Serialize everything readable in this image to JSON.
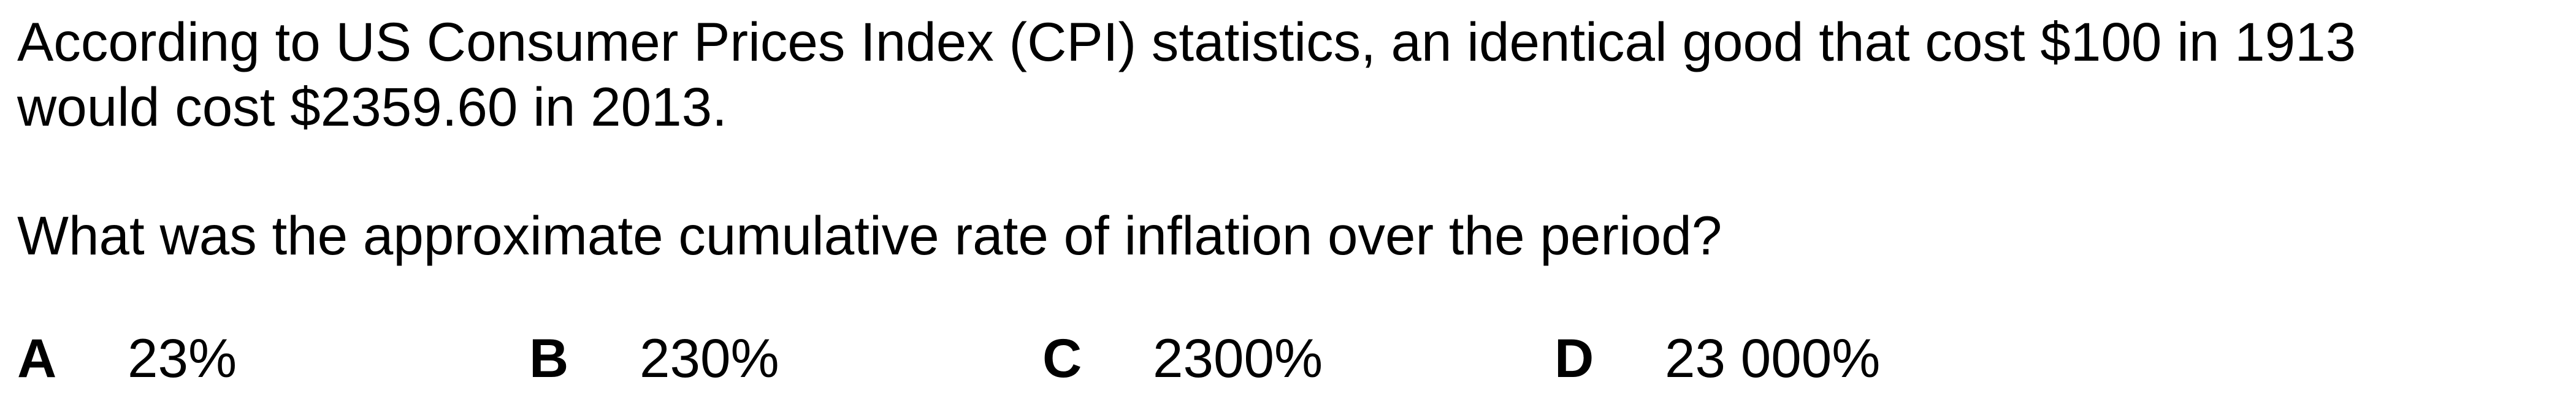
{
  "passage": {
    "line_1": "According to US Consumer Prices Index (CPI) statistics, an identical good that cost $100 in 1913",
    "line_2": "would cost $2359.60 in 2013."
  },
  "question": "What was the approximate cumulative rate of inflation over the period?",
  "options": [
    {
      "letter": "A",
      "value": "23%"
    },
    {
      "letter": "B",
      "value": "230%"
    },
    {
      "letter": "C",
      "value": "2300%"
    },
    {
      "letter": "D",
      "value": "23 000%"
    }
  ]
}
